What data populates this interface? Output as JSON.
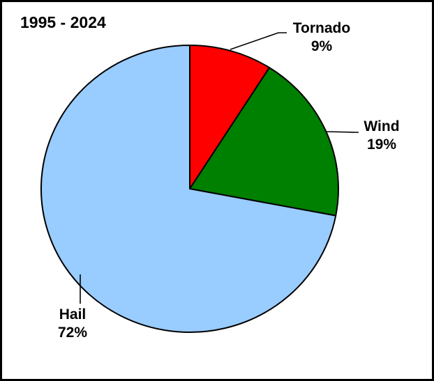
{
  "chart_data": {
    "type": "pie",
    "title": "1995 - 2024",
    "categories": [
      "Tornado",
      "Wind",
      "Hail"
    ],
    "values": [
      9,
      19,
      72
    ],
    "value_unit": "percent",
    "colors": [
      "#ff0000",
      "#008000",
      "#99ccff"
    ],
    "outline_color": "#000000",
    "start_angle_deg": 0,
    "direction": "clockwise",
    "legend_position": "none",
    "label_items": [
      {
        "name": "Tornado",
        "value_label": "9%"
      },
      {
        "name": "Wind",
        "value_label": "19%"
      },
      {
        "name": "Hail",
        "value_label": "72%"
      }
    ]
  }
}
